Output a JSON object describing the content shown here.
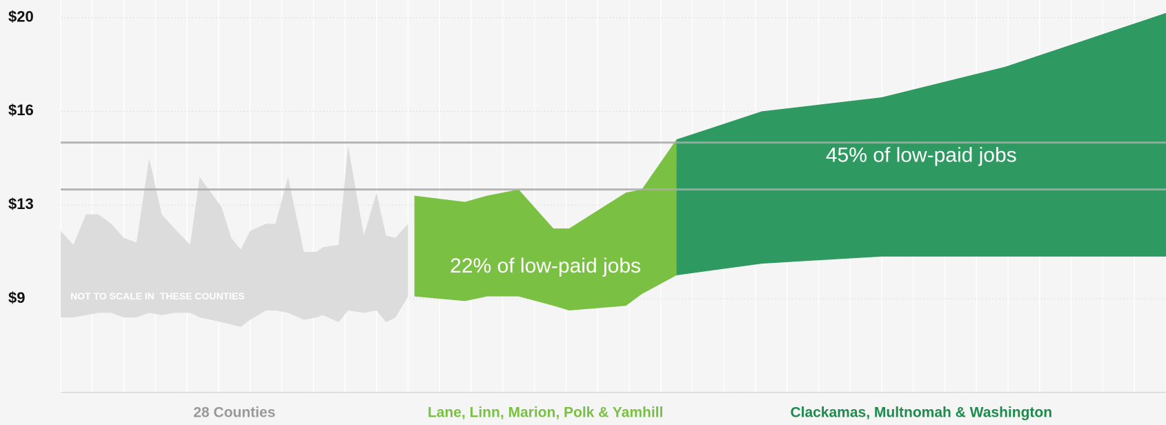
{
  "chart_data": {
    "type": "range_area",
    "xlim": [
      0,
      35
    ],
    "ylim": [
      5,
      20.8
    ],
    "yticks": [
      {
        "value": 9,
        "label": "$9"
      },
      {
        "value": 13,
        "label": "$13"
      },
      {
        "value": 16,
        "label": "$16"
      },
      {
        "value": 20,
        "label": "$20"
      }
    ],
    "reference_lines": {
      "values": [
        15,
        13.5
      ],
      "color": "#aaaaaa"
    },
    "grid": true,
    "series": [
      {
        "name": "28 Counties",
        "color": "#dcdcdc",
        "label_color": "#999999",
        "note": "NOT TO SCALE IN  THESE COUNTIES",
        "x": [
          0,
          0.4,
          0.8,
          1.2,
          1.6,
          2.0,
          2.4,
          2.8,
          3.2,
          3.6,
          4.1,
          4.4,
          5.1,
          5.4,
          5.7,
          6.0,
          6.5,
          6.8,
          7.2,
          7.7,
          8.1,
          8.3,
          8.8,
          9.1,
          9.6,
          10.0,
          10.3,
          10.6,
          11.0
        ],
        "high": [
          11.9,
          11.3,
          12.6,
          12.6,
          12.2,
          11.6,
          11.4,
          14.5,
          12.6,
          12.0,
          11.3,
          13.9,
          12.9,
          11.6,
          11.1,
          11.9,
          12.2,
          12.2,
          13.9,
          11.0,
          11.0,
          11.2,
          11.3,
          14.9,
          11.7,
          13.4,
          11.7,
          11.6,
          12.2
        ],
        "low": [
          8.2,
          8.2,
          8.3,
          8.4,
          8.4,
          8.2,
          8.2,
          8.4,
          8.3,
          8.4,
          8.4,
          8.2,
          8.0,
          7.9,
          7.8,
          8.1,
          8.5,
          8.5,
          8.4,
          8.1,
          8.2,
          8.3,
          8.0,
          8.5,
          8.4,
          8.5,
          8.0,
          8.2,
          9.1
        ]
      },
      {
        "name": "Lane, Linn, Marion, Polk & Yamhill",
        "color": "#7ac143",
        "label_color": "#7ac143",
        "annotation": "22% of low-paid jobs",
        "x": [
          11.2,
          12.8,
          13.5,
          14.5,
          15.6,
          16.1,
          17.9,
          18.4,
          19.5
        ],
        "high": [
          13.3,
          13.1,
          13.3,
          13.5,
          12.0,
          12.0,
          13.4,
          13.5,
          15.1
        ],
        "low": [
          9.1,
          8.9,
          9.1,
          9.1,
          8.7,
          8.5,
          8.7,
          9.2,
          10.0
        ]
      },
      {
        "name": "Clackamas, Multnomah & Washington",
        "color": "#2e9960",
        "label_color": "#1e8a4e",
        "annotation": "45% of low-paid jobs",
        "x": [
          19.5,
          22.2,
          26.0,
          29.9,
          35.0
        ],
        "high": [
          15.1,
          16.0,
          16.6,
          17.9,
          20.2
        ],
        "low": [
          10.0,
          10.5,
          10.8,
          10.8,
          10.8
        ]
      }
    ]
  }
}
